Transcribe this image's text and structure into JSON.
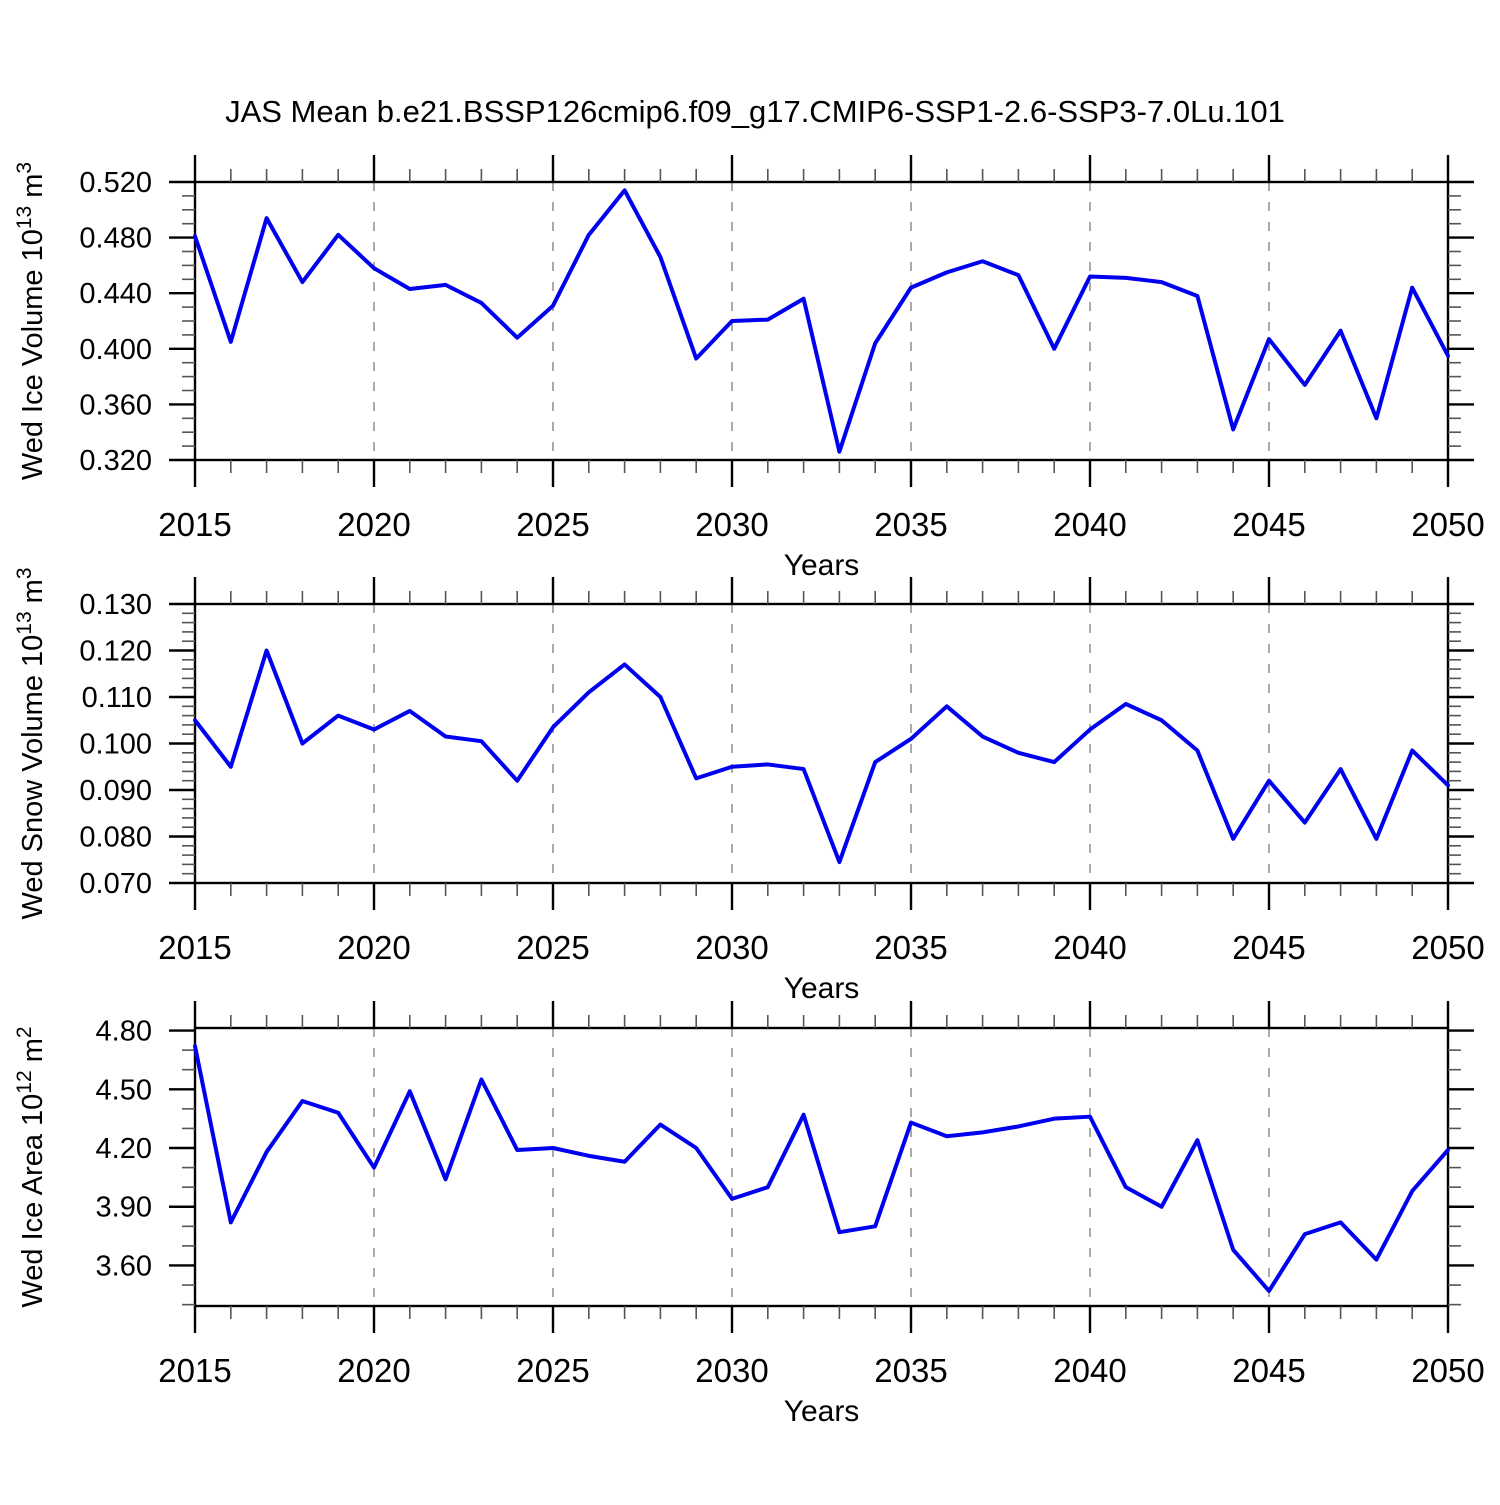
{
  "title": "JAS Mean b.e21.BSSP126cmip6.f09_g17.CMIP6-SSP1-2.6-SSP3-7.0Lu.101",
  "colors": {
    "line": "#0000f0",
    "axis": "#000000",
    "minor_tick": "#555555",
    "grid": "#aaaaaa",
    "background": "#ffffff"
  },
  "x_axis": {
    "label": "Years",
    "start": 2015,
    "end": 2050,
    "major_step": 5,
    "minor_step": 1,
    "tick_labels": [
      "2015",
      "2020",
      "2025",
      "2030",
      "2035",
      "2040",
      "2045",
      "2050"
    ],
    "gridline_years": [
      2020,
      2025,
      2030,
      2035,
      2040,
      2045
    ],
    "years": [
      2015,
      2016,
      2017,
      2018,
      2019,
      2020,
      2021,
      2022,
      2023,
      2024,
      2025,
      2026,
      2027,
      2028,
      2029,
      2030,
      2031,
      2032,
      2033,
      2034,
      2035,
      2036,
      2037,
      2038,
      2039,
      2040,
      2041,
      2042,
      2043,
      2044,
      2045,
      2046,
      2047,
      2048,
      2049,
      2050
    ]
  },
  "chart_data": [
    {
      "id": "ice-volume",
      "type": "line",
      "ylabel": "Wed Ice Volume 10^13 m^3",
      "ylabel_parts": [
        {
          "text": "Wed Ice Volume 10",
          "sup": false
        },
        {
          "text": "13",
          "sup": true
        },
        {
          "text": " m",
          "sup": false
        },
        {
          "text": "3",
          "sup": true
        }
      ],
      "xlabel": "Years",
      "ylim": [
        0.32,
        0.52
      ],
      "minor_step": 0.01,
      "grid": "vertical-dashed",
      "legend": "none",
      "yticks": [
        {
          "value": 0.32,
          "label": "0.320"
        },
        {
          "value": 0.36,
          "label": "0.360"
        },
        {
          "value": 0.4,
          "label": "0.400"
        },
        {
          "value": 0.44,
          "label": "0.440"
        },
        {
          "value": 0.48,
          "label": "0.480"
        },
        {
          "value": 0.52,
          "label": "0.520"
        }
      ],
      "values": [
        0.481,
        0.405,
        0.494,
        0.448,
        0.482,
        0.458,
        0.443,
        0.446,
        0.433,
        0.408,
        0.431,
        0.482,
        0.514,
        0.466,
        0.393,
        0.42,
        0.421,
        0.436,
        0.326,
        0.404,
        0.444,
        0.455,
        0.463,
        0.453,
        0.4,
        0.452,
        0.451,
        0.448,
        0.438,
        0.342,
        0.407,
        0.374,
        0.413,
        0.35,
        0.444,
        0.395
      ]
    },
    {
      "id": "snow-volume",
      "type": "line",
      "ylabel": "Wed Snow Volume 10^13 m^3",
      "ylabel_parts": [
        {
          "text": "Wed Snow Volume 10",
          "sup": false
        },
        {
          "text": "13",
          "sup": true
        },
        {
          "text": " m",
          "sup": false
        },
        {
          "text": "3",
          "sup": true
        }
      ],
      "xlabel": "Years",
      "ylim": [
        0.07,
        0.13
      ],
      "minor_step": 0.002,
      "grid": "vertical-dashed",
      "legend": "none",
      "yticks": [
        {
          "value": 0.07,
          "label": "0.070"
        },
        {
          "value": 0.08,
          "label": "0.080"
        },
        {
          "value": 0.09,
          "label": "0.090"
        },
        {
          "value": 0.1,
          "label": "0.100"
        },
        {
          "value": 0.11,
          "label": "0.110"
        },
        {
          "value": 0.12,
          "label": "0.120"
        },
        {
          "value": 0.13,
          "label": "0.130"
        }
      ],
      "values": [
        0.105,
        0.095,
        0.12,
        0.1,
        0.106,
        0.103,
        0.107,
        0.1015,
        0.1005,
        0.092,
        0.1035,
        0.111,
        0.117,
        0.11,
        0.0925,
        0.095,
        0.0955,
        0.0945,
        0.0745,
        0.096,
        0.101,
        0.108,
        0.1015,
        0.098,
        0.096,
        0.103,
        0.1085,
        0.105,
        0.0985,
        0.0795,
        0.092,
        0.083,
        0.0945,
        0.0795,
        0.0985,
        0.091
      ]
    },
    {
      "id": "ice-area",
      "type": "line",
      "ylabel": "Wed Ice Area 10^12 m^2",
      "ylabel_parts": [
        {
          "text": "Wed Ice Area 10",
          "sup": false
        },
        {
          "text": "12",
          "sup": true
        },
        {
          "text": " m",
          "sup": false
        },
        {
          "text": "2",
          "sup": true
        }
      ],
      "xlabel": "Years",
      "ylim": [
        3.393,
        4.813
      ],
      "minor_step": 0.1,
      "grid": "vertical-dashed",
      "legend": "none",
      "yticks": [
        {
          "value": 3.6,
          "label": "3.60"
        },
        {
          "value": 3.9,
          "label": "3.90"
        },
        {
          "value": 4.2,
          "label": "4.20"
        },
        {
          "value": 4.5,
          "label": "4.50"
        },
        {
          "value": 4.8,
          "label": "4.80"
        }
      ],
      "values": [
        4.72,
        3.82,
        4.18,
        4.44,
        4.38,
        4.1,
        4.49,
        4.04,
        4.55,
        4.19,
        4.2,
        4.16,
        4.13,
        4.32,
        4.2,
        3.94,
        4.0,
        4.37,
        3.77,
        3.8,
        4.33,
        4.26,
        4.28,
        4.31,
        4.35,
        4.36,
        4.0,
        3.9,
        4.24,
        3.68,
        3.47,
        3.76,
        3.82,
        3.63,
        3.98,
        4.19
      ]
    }
  ]
}
